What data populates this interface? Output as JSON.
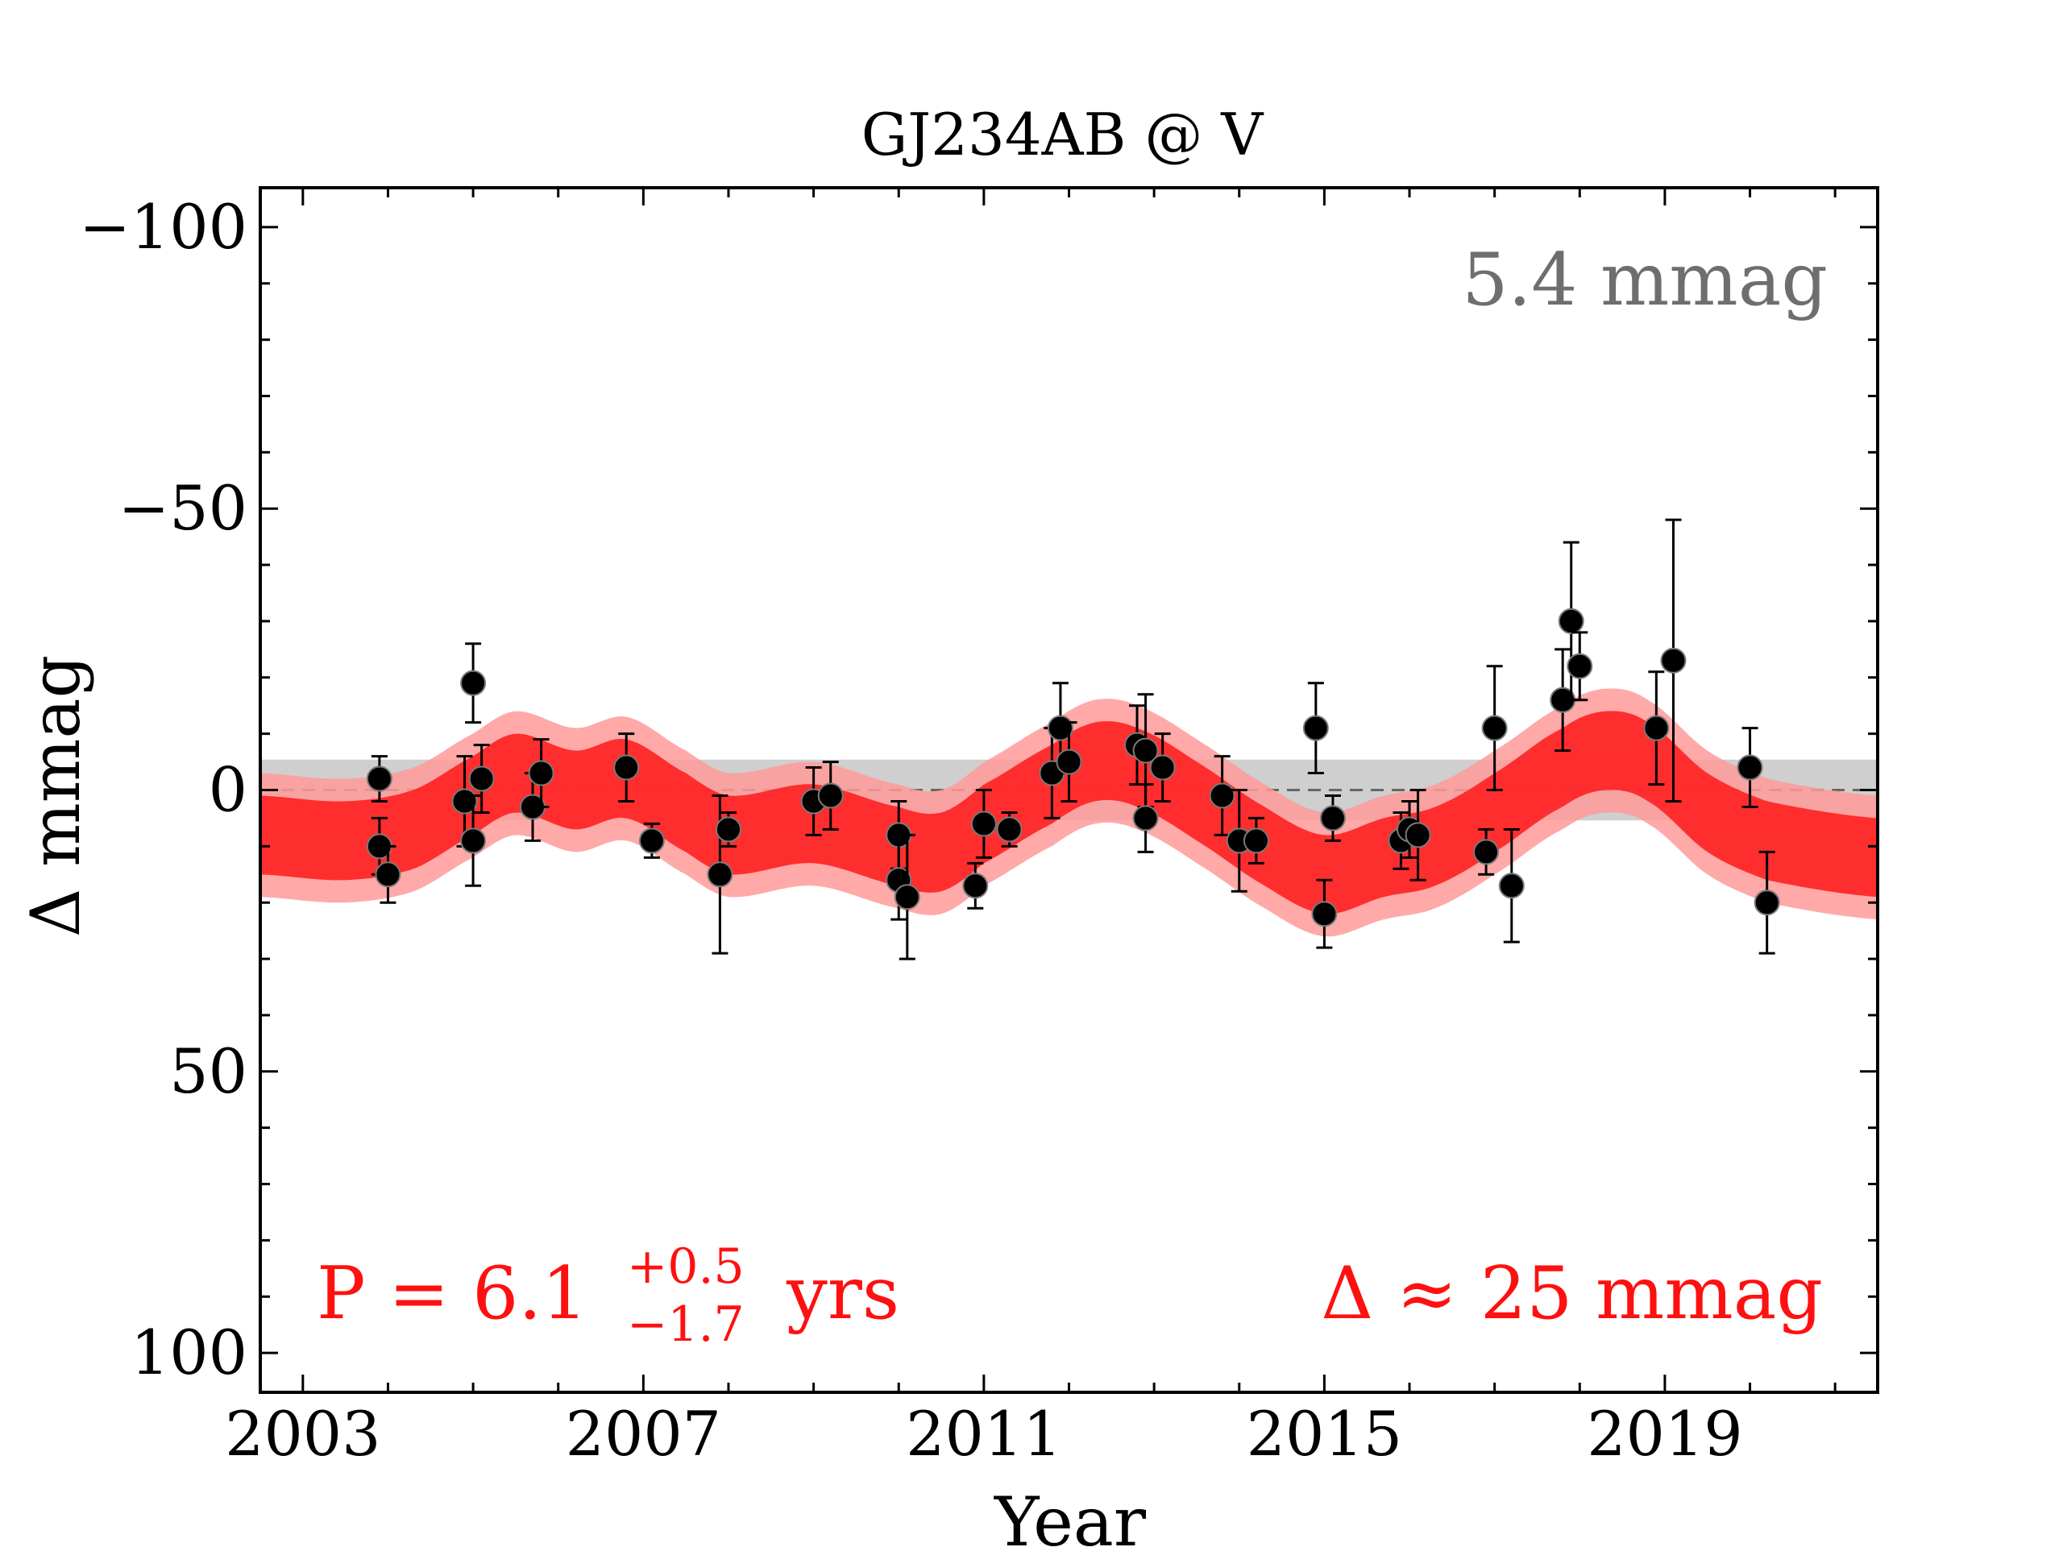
{
  "chart_data": {
    "type": "scatter",
    "title": "GJ234AB @ V",
    "xlabel": "Year",
    "ylabel": "Δ  mmag",
    "xlim": [
      2002.5,
      2021.5
    ],
    "ylim": [
      107,
      -107
    ],
    "y_inverted": true,
    "x_ticks": [
      2003,
      2007,
      2011,
      2015,
      2019
    ],
    "x_tick_labels": [
      "2003",
      "2007",
      "2011",
      "2015",
      "2019"
    ],
    "y_ticks": [
      -100,
      -50,
      0,
      50,
      100
    ],
    "y_tick_labels": [
      "−100",
      "−50",
      "0",
      "50",
      "100"
    ],
    "grid": false,
    "annotations": {
      "rms_label": "5.4 mmag",
      "period_prefix": "P = 6.1",
      "period_sup": "+0.5",
      "period_sub": "−1.7",
      "period_unit": "yrs",
      "amplitude_label": "Δ ≈ 25 mmag"
    },
    "rms_band": 5.4,
    "model": {
      "period_years": 6.1,
      "color": "#ff2020",
      "band_outer_color": "#ff9a9a",
      "description_points_x": [
        2002.5,
        2003.5,
        2004.3,
        2005.0,
        2005.5,
        2006.2,
        2006.8,
        2007.5,
        2008.0,
        2009.0,
        2010.0,
        2010.5,
        2011.0,
        2011.8,
        2012.3,
        2012.8,
        2013.5,
        2014.3,
        2015.0,
        2015.7,
        2016.3,
        2017.0,
        2017.8,
        2018.3,
        2018.8,
        2019.5,
        2020.2,
        2021.5
      ],
      "description_points_y": [
        8,
        9,
        7,
        1,
        -3,
        0,
        -2,
        4,
        8,
        6,
        10,
        11,
        6,
        -1,
        -5,
        -4,
        2,
        10,
        15,
        12,
        10,
        4,
        -4,
        -7,
        -5,
        4,
        9,
        12
      ],
      "band_inner_width": 7,
      "band_outer_width": 11
    },
    "series": [
      {
        "x": [
          2003.9,
          2003.9,
          2004.0,
          2004.9,
          2005.0,
          2005.0,
          2005.1,
          2005.7,
          2005.8,
          2006.8,
          2007.1,
          2007.9,
          2008.0,
          2009.0,
          2009.2,
          2010.0,
          2010.0,
          2010.1,
          2010.9,
          2011.0,
          2011.3,
          2011.8,
          2011.9,
          2012.0,
          2012.8,
          2012.9,
          2012.9,
          2013.1,
          2013.8,
          2014.0,
          2014.2,
          2014.9,
          2015.0,
          2015.1,
          2015.9,
          2016.0,
          2016.1,
          2016.9,
          2017.0,
          2017.2,
          2017.8,
          2017.9,
          2018.0,
          2018.9,
          2019.1,
          2020.0,
          2020.2
        ],
        "y": [
          -2,
          10,
          15,
          2,
          9,
          -19,
          -2,
          3,
          -3,
          -4,
          9,
          15,
          7,
          2,
          1,
          8,
          16,
          19,
          17,
          6,
          7,
          -3,
          -11,
          -5,
          -8,
          -7,
          5,
          -4,
          1,
          9,
          9,
          -11,
          22,
          5,
          9,
          7,
          8,
          11,
          -11,
          17,
          -16,
          -30,
          -22,
          -11,
          -23,
          -4,
          20
        ],
        "err": [
          4,
          5,
          5,
          8,
          8,
          7,
          6,
          6,
          6,
          6,
          3,
          14,
          3,
          6,
          6,
          6,
          7,
          11,
          4,
          6,
          3,
          8,
          8,
          7,
          7,
          10,
          6,
          6,
          7,
          9,
          4,
          8,
          6,
          4,
          5,
          5,
          8,
          4,
          11,
          10,
          9,
          14,
          6,
          10,
          25,
          7,
          9
        ]
      }
    ]
  }
}
